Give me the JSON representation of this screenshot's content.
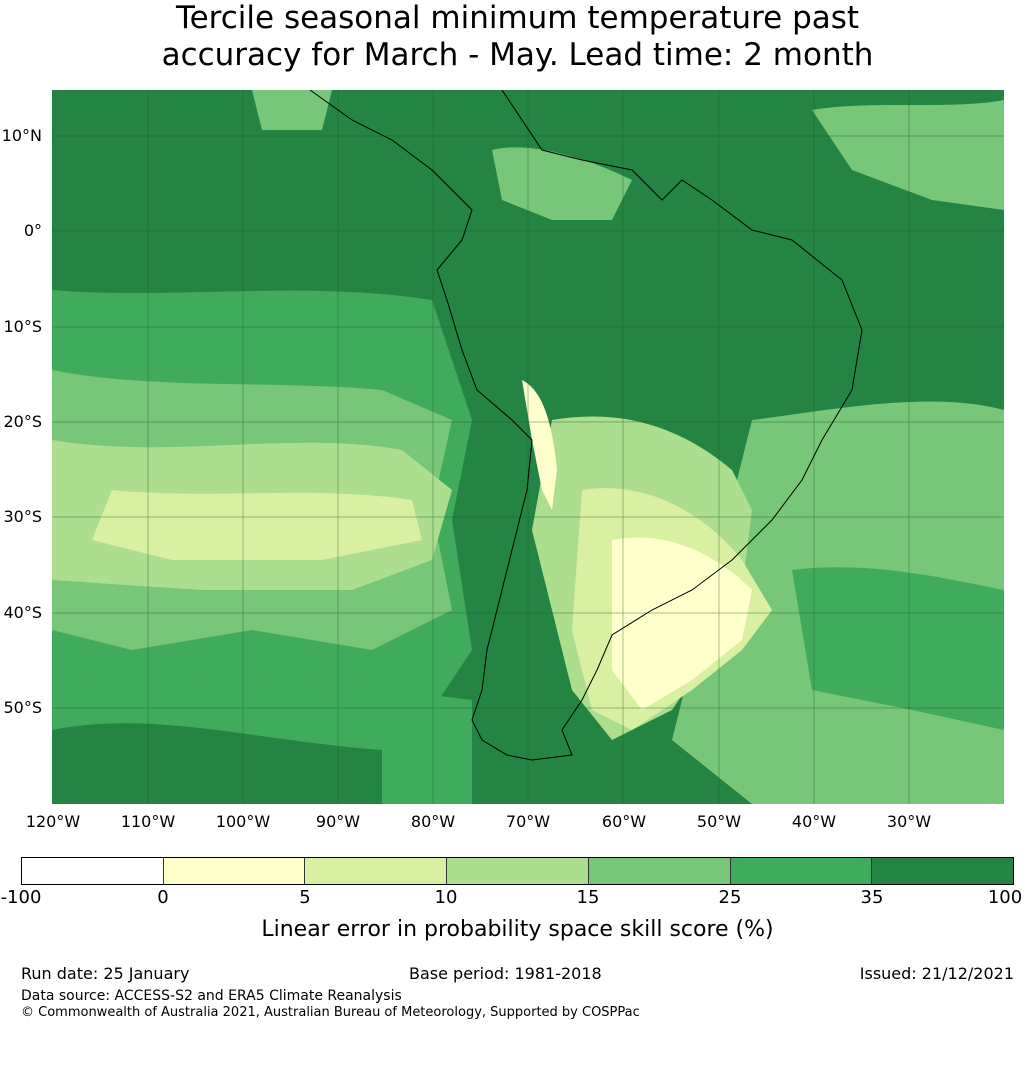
{
  "title_line1": "Tercile seasonal minimum temperature past",
  "title_line2": "accuracy for March - May. Lead time: 2 month",
  "latitude_labels": [
    "10°N",
    "0°",
    "10°S",
    "20°S",
    "30°S",
    "40°S",
    "50°S"
  ],
  "longitude_labels": [
    "120°W",
    "110°W",
    "100°W",
    "90°W",
    "80°W",
    "70°W",
    "60°W",
    "50°W",
    "40°W",
    "30°W"
  ],
  "colorbar": {
    "ticks": [
      "-100",
      "0",
      "5",
      "10",
      "15",
      "25",
      "35",
      "100"
    ],
    "colors": [
      "#ffffff",
      "#ffffcc",
      "#d9f0a3",
      "#addd8e",
      "#78c679",
      "#41ab5d",
      "#238443"
    ],
    "label": "Linear error in probability space skill score (%)"
  },
  "footer": {
    "run_date": "Run date: 25 January",
    "base_period": "Base period: 1981-2018",
    "issued": "Issued: 21/12/2021",
    "data_source": "Data source: ACCESS-S2 and ERA5 Climate Reanalysis",
    "copyright": "© Commonwealth of Australia 2021, Australian Bureau of Meteorology, Supported by COSPPac"
  }
}
